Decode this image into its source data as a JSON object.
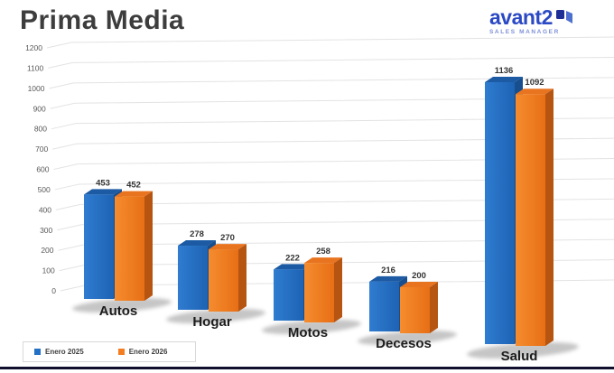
{
  "header": {
    "title": "Prima Media"
  },
  "logo": {
    "brand": "avant2",
    "tagline": "SALES MANAGER",
    "brand_color": "#2b49c4",
    "tagline_color": "#7e90d8",
    "icon": "open-door-icon",
    "icon_dark_color": "#1d2f96",
    "icon_light_color": "#4d6fd0"
  },
  "colors": {
    "title_text": "#3d3d3d",
    "bottom_rule": "#10102e",
    "gridline": "#e3e3e3",
    "tick_text": "#595959",
    "value_text": "#333333",
    "category_text": "#1c1c1c"
  },
  "chart_data": {
    "type": "bar",
    "style": "3d",
    "title": "Prima Media",
    "categories": [
      "Autos",
      "Hogar",
      "Motos",
      "Decesos",
      "Salud"
    ],
    "series": [
      {
        "name": "Enero 2025",
        "color": "#2271c6",
        "color_top": "#1c5aa3",
        "color_side": "#174e8e",
        "values": [
          453,
          278,
          222,
          216,
          1136
        ]
      },
      {
        "name": "Enero 2026",
        "color": "#f47d21",
        "color_top": "#e97420",
        "color_side": "#b65511",
        "values": [
          452,
          270,
          258,
          200,
          1092
        ]
      }
    ],
    "xlabel": "",
    "ylabel": "",
    "ylim": [
      0,
      1200
    ],
    "ytick_step": 100,
    "grid": true,
    "legend_position": "bottom-left",
    "data_labels": true
  }
}
